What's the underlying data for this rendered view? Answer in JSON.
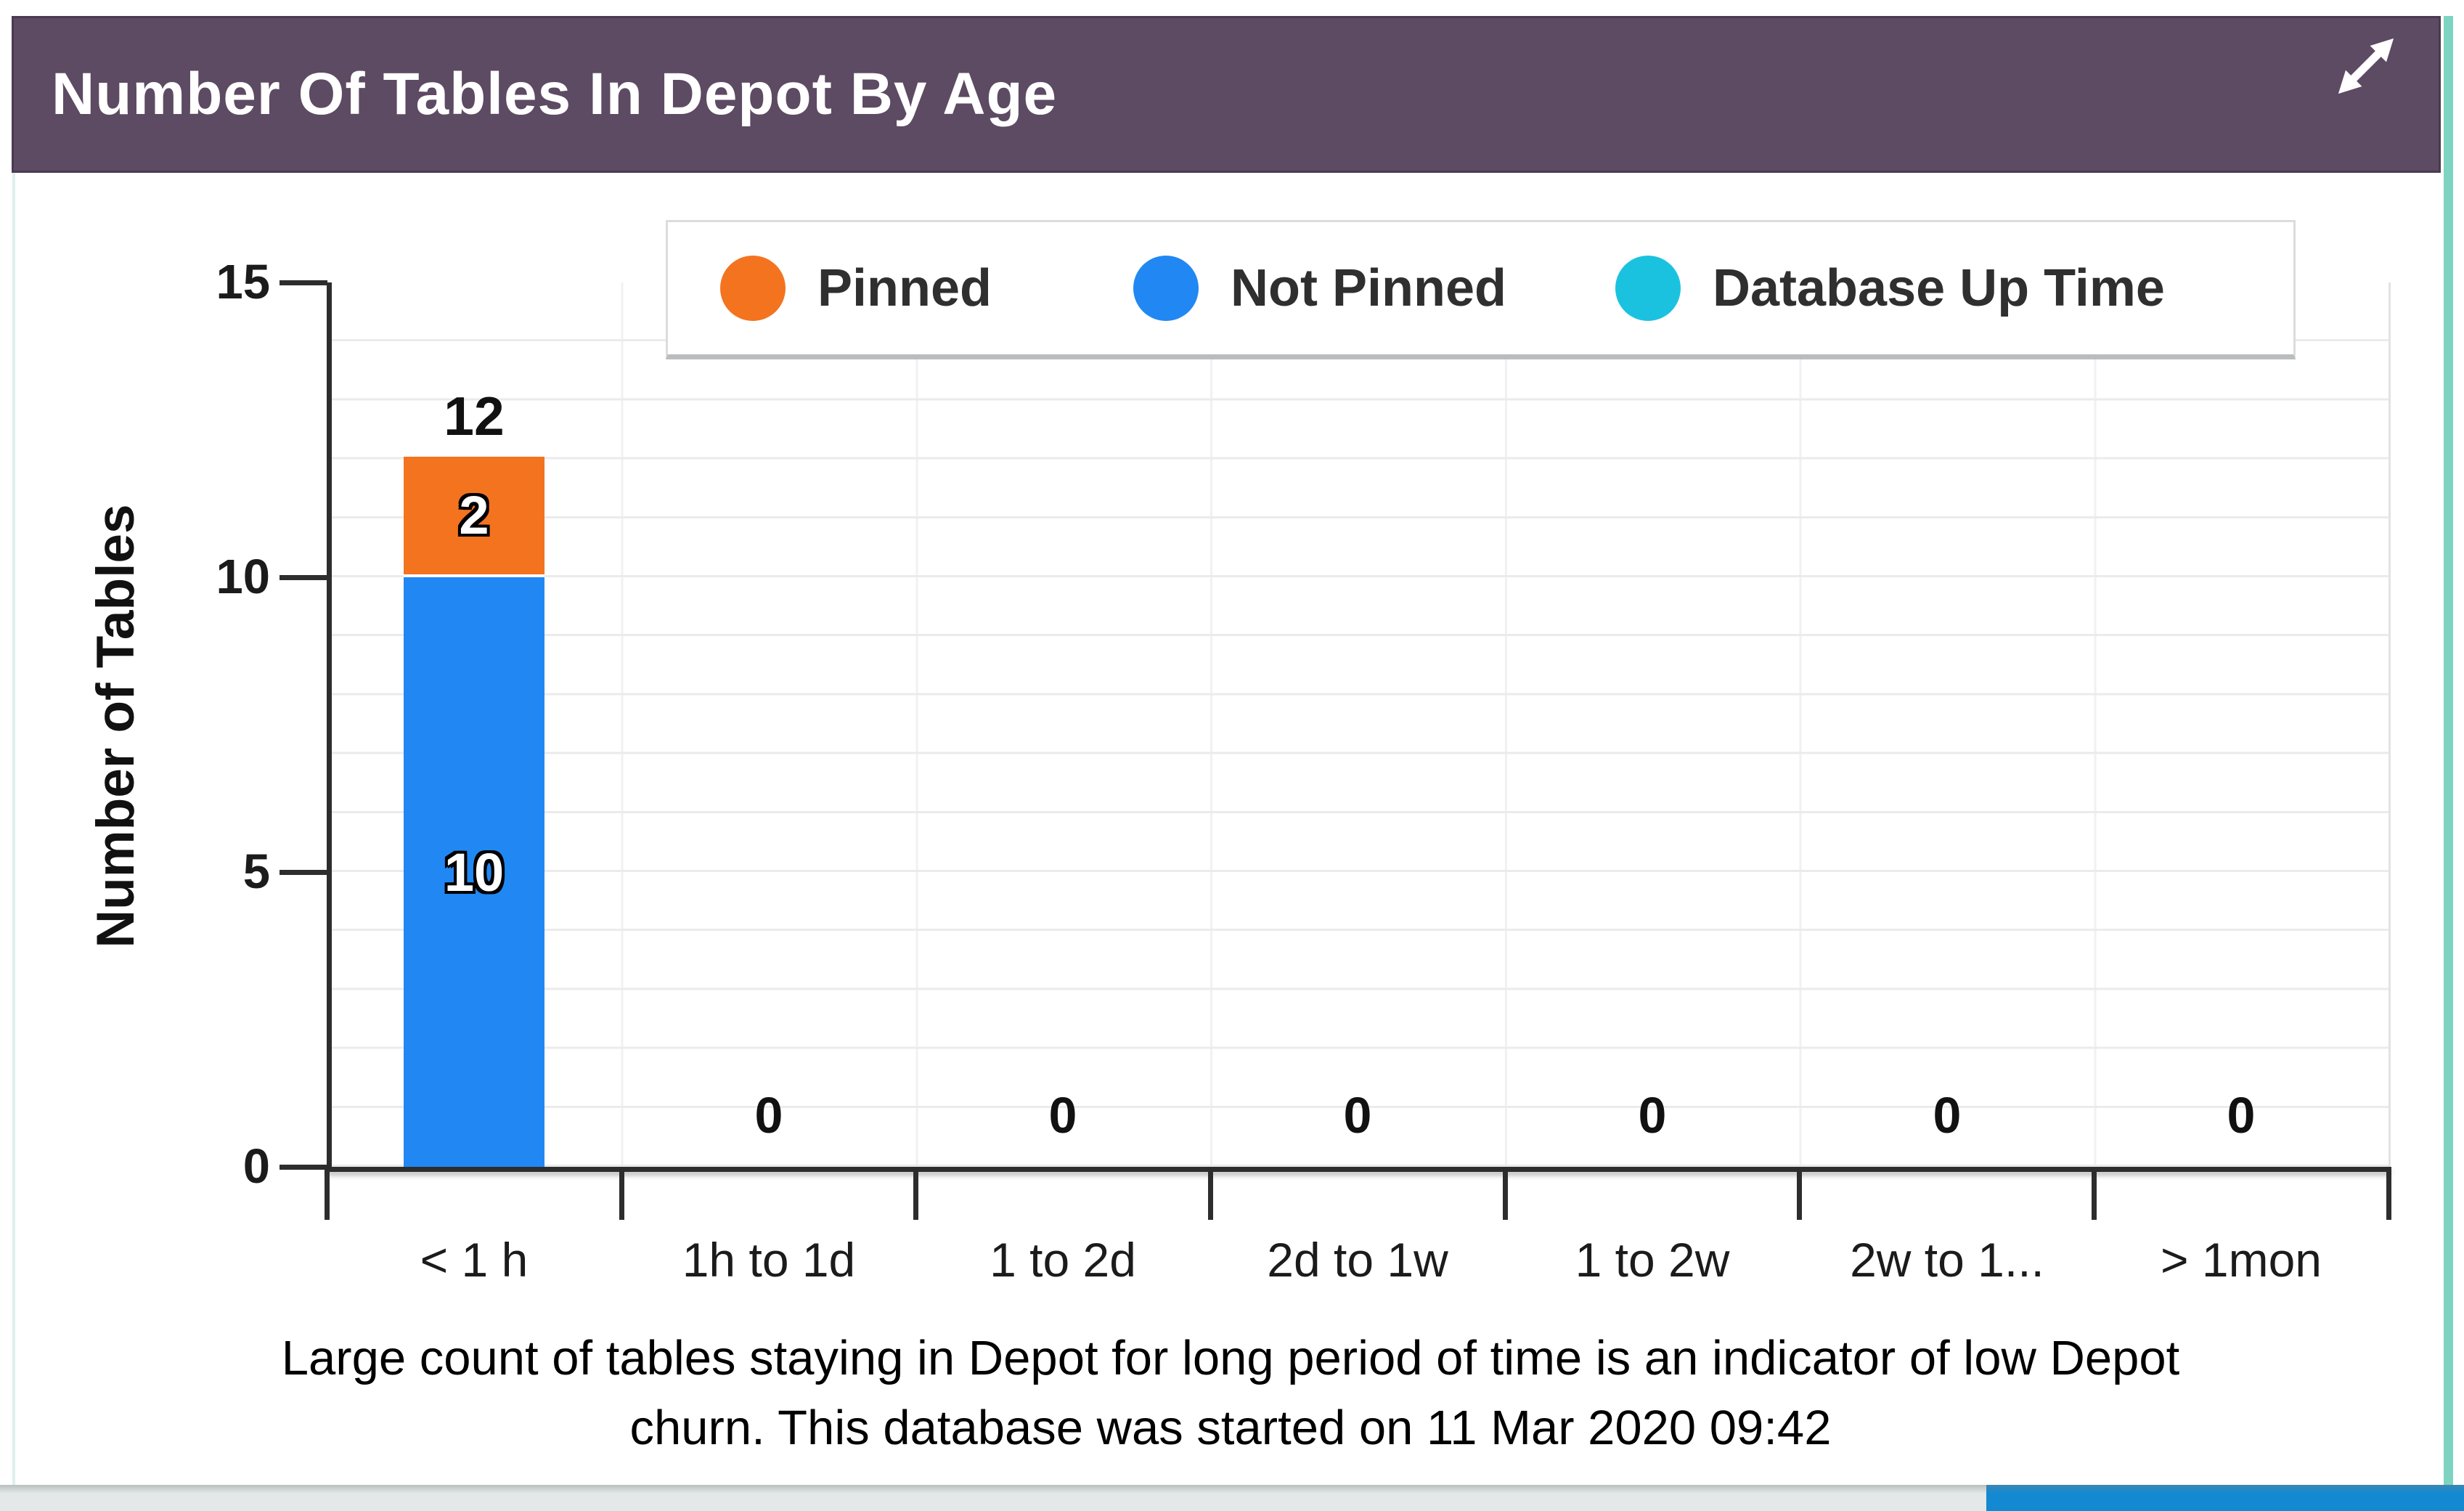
{
  "header": {
    "title": "Number Of Tables In Depot By Age",
    "expand_icon": "expand-diagonal-arrows"
  },
  "legend": {
    "position": "top",
    "items": [
      {
        "label": "Pinned",
        "color": "#F4731F"
      },
      {
        "label": "Not Pinned",
        "color": "#2188F3"
      },
      {
        "label": "Database Up Time",
        "color": "#1BC2E0"
      }
    ]
  },
  "chart_data": {
    "type": "bar",
    "stacked": true,
    "categories": [
      "< 1 h",
      "1h to 1d",
      "1 to 2d",
      "2d to 1w",
      "1 to 2w",
      "2w to 1...",
      "> 1mon"
    ],
    "series": [
      {
        "name": "Not Pinned",
        "color": "#2188F3",
        "values": [
          10,
          0,
          0,
          0,
          0,
          0,
          0
        ]
      },
      {
        "name": "Pinned",
        "color": "#F4731F",
        "values": [
          2,
          0,
          0,
          0,
          0,
          0,
          0
        ]
      },
      {
        "name": "Database Up Time",
        "color": "#1BC2E0",
        "values": []
      }
    ],
    "totals": [
      12,
      0,
      0,
      0,
      0,
      0,
      0
    ],
    "xlabel": "",
    "ylabel": "Number of Tables",
    "ylim": [
      0,
      15
    ],
    "ytick_labels": [
      "15",
      "10",
      "5",
      "0"
    ],
    "grid": true,
    "legend_position": "top"
  },
  "caption": {
    "line1": "Large count of tables staying in Depot for long period of time is an indicator of low Depot",
    "line2": "churn. This database was started on 11 Mar 2020 09:42"
  },
  "colors": {
    "header_bg": "#5D4A63",
    "header_border": "#4A3B51",
    "panel_right_border": "#7FD4C1",
    "panel_left_border": "#DDF0EC",
    "axis": "#2D2D2D",
    "grid_line": "#EBEBEB",
    "scroll_track": "#E4E8E8",
    "scroll_thumb": "#1389D2"
  }
}
